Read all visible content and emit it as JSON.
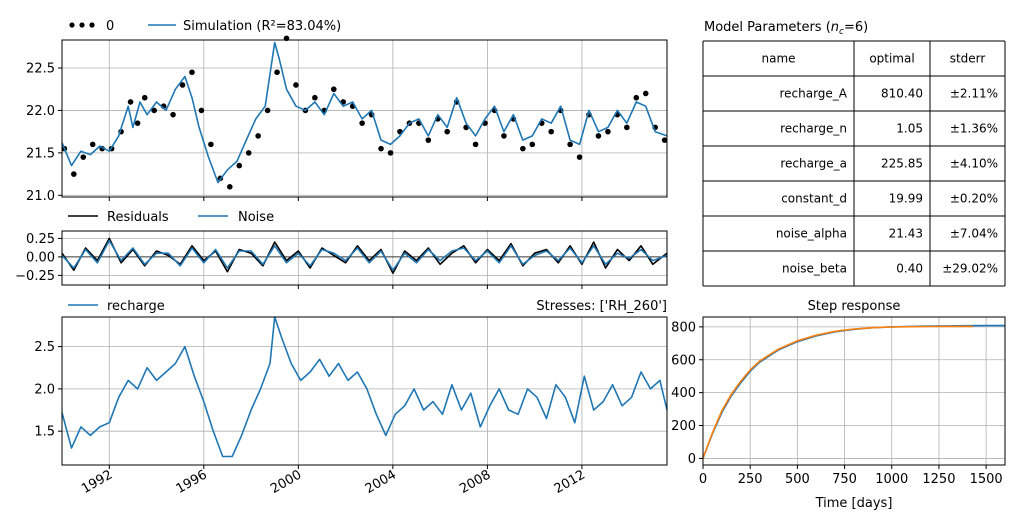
{
  "chart_data": [
    {
      "type": "scatter+line",
      "panel": "head",
      "legend": [
        {
          "label": "0",
          "style": "dots",
          "color": "#000000"
        },
        {
          "label": "Simulation (R²=83.04%)",
          "style": "line",
          "color": "#1f77b4"
        }
      ],
      "legend_placement": "top-left outside",
      "xlim": [
        1990.0,
        2015.6
      ],
      "ylim": [
        20.98,
        22.83
      ],
      "y_ticks": [
        "21.0",
        "21.5",
        "22.0",
        "22.5"
      ],
      "grid": true,
      "series": [
        {
          "name": "Simulation",
          "color": "#1f77b4",
          "x": [
            1990.0,
            1990.4,
            1990.8,
            1991.2,
            1991.6,
            1992.0,
            1992.4,
            1992.8,
            1993.0,
            1993.3,
            1993.6,
            1994.0,
            1994.4,
            1994.8,
            1995.2,
            1995.5,
            1995.8,
            1996.2,
            1996.6,
            1997.0,
            1997.4,
            1997.8,
            1998.2,
            1998.6,
            1999.0,
            1999.2,
            1999.5,
            1999.9,
            2000.3,
            2000.7,
            2001.1,
            2001.5,
            2001.9,
            2002.3,
            2002.7,
            2003.1,
            2003.5,
            2003.9,
            2004.3,
            2004.7,
            2005.1,
            2005.5,
            2005.9,
            2006.3,
            2006.7,
            2007.1,
            2007.5,
            2007.9,
            2008.3,
            2008.7,
            2009.1,
            2009.5,
            2009.9,
            2010.3,
            2010.7,
            2011.1,
            2011.5,
            2011.9,
            2012.3,
            2012.7,
            2013.1,
            2013.5,
            2013.9,
            2014.3,
            2014.7,
            2015.1,
            2015.6
          ],
          "y": [
            21.62,
            21.35,
            21.52,
            21.48,
            21.58,
            21.52,
            21.7,
            22.05,
            21.8,
            22.1,
            21.95,
            22.1,
            22.0,
            22.25,
            22.4,
            22.15,
            21.8,
            21.45,
            21.15,
            21.3,
            21.4,
            21.65,
            21.9,
            22.05,
            22.8,
            22.6,
            22.25,
            22.05,
            22.0,
            22.1,
            21.95,
            22.2,
            22.05,
            22.1,
            21.9,
            22.0,
            21.65,
            21.6,
            21.7,
            21.85,
            21.9,
            21.7,
            21.95,
            21.8,
            22.15,
            21.85,
            21.7,
            21.9,
            22.05,
            21.75,
            21.95,
            21.65,
            21.7,
            21.9,
            21.85,
            22.05,
            21.65,
            21.6,
            22.0,
            21.75,
            21.8,
            22.0,
            21.85,
            22.1,
            22.05,
            21.75,
            21.7
          ]
        },
        {
          "name": "0",
          "color": "#000000",
          "x": [
            1990.1,
            1990.5,
            1990.9,
            1991.3,
            1991.7,
            1992.1,
            1992.5,
            1992.9,
            1993.2,
            1993.5,
            1993.9,
            1994.3,
            1994.7,
            1995.1,
            1995.5,
            1995.9,
            1996.3,
            1996.7,
            1997.1,
            1997.5,
            1997.9,
            1998.3,
            1998.7,
            1999.1,
            1999.5,
            1999.9,
            2000.3,
            2000.7,
            2001.1,
            2001.5,
            2001.9,
            2002.3,
            2002.7,
            2003.1,
            2003.5,
            2003.9,
            2004.3,
            2004.7,
            2005.1,
            2005.5,
            2005.9,
            2006.3,
            2006.7,
            2007.1,
            2007.5,
            2007.9,
            2008.3,
            2008.7,
            2009.1,
            2009.5,
            2009.9,
            2010.3,
            2010.7,
            2011.1,
            2011.5,
            2011.9,
            2012.3,
            2012.7,
            2013.1,
            2013.5,
            2013.9,
            2014.3,
            2014.7,
            2015.1,
            2015.5
          ],
          "y": [
            21.55,
            21.25,
            21.45,
            21.6,
            21.55,
            21.55,
            21.75,
            22.1,
            21.85,
            22.15,
            22.0,
            22.05,
            21.95,
            22.3,
            22.45,
            22.0,
            21.6,
            21.2,
            21.1,
            21.35,
            21.5,
            21.7,
            22.0,
            22.45,
            22.85,
            22.3,
            22.0,
            22.15,
            22.0,
            22.25,
            22.1,
            22.05,
            21.85,
            21.95,
            21.55,
            21.5,
            21.75,
            21.85,
            21.85,
            21.65,
            21.9,
            21.75,
            22.1,
            21.8,
            21.6,
            21.85,
            22.0,
            21.7,
            21.9,
            21.55,
            21.6,
            21.85,
            21.75,
            22.0,
            21.6,
            21.45,
            21.95,
            21.7,
            21.75,
            21.95,
            21.8,
            22.15,
            22.2,
            21.8,
            21.65
          ]
        }
      ]
    },
    {
      "type": "line",
      "panel": "residuals",
      "legend": [
        {
          "label": "Residuals",
          "color": "#000000"
        },
        {
          "label": "Noise",
          "color": "#1f77b4"
        }
      ],
      "xlim": [
        1990.0,
        2015.6
      ],
      "ylim": [
        -0.38,
        0.35
      ],
      "y_ticks": [
        "−0.25",
        "0.00",
        "0.25"
      ],
      "grid": true,
      "series": [
        {
          "name": "Residuals",
          "color": "#000000",
          "x": [
            1990.0,
            1990.5,
            1991.0,
            1991.5,
            1992.0,
            1992.5,
            1993.0,
            1993.5,
            1994.0,
            1994.5,
            1995.0,
            1995.5,
            1996.0,
            1996.5,
            1997.0,
            1997.5,
            1998.0,
            1998.5,
            1999.0,
            1999.5,
            2000.0,
            2000.5,
            2001.0,
            2001.5,
            2002.0,
            2002.5,
            2003.0,
            2003.5,
            2004.0,
            2004.5,
            2005.0,
            2005.5,
            2006.0,
            2006.5,
            2007.0,
            2007.5,
            2008.0,
            2008.5,
            2009.0,
            2009.5,
            2010.0,
            2010.5,
            2011.0,
            2011.5,
            2012.0,
            2012.5,
            2013.0,
            2013.5,
            2014.0,
            2014.5,
            2015.0,
            2015.6
          ],
          "y": [
            0.05,
            -0.18,
            0.12,
            -0.05,
            0.25,
            -0.08,
            0.1,
            -0.12,
            0.08,
            0.02,
            -0.1,
            0.15,
            -0.05,
            0.08,
            -0.2,
            0.1,
            0.05,
            -0.12,
            0.2,
            -0.05,
            0.08,
            -0.15,
            0.12,
            0.02,
            -0.08,
            0.15,
            -0.05,
            0.1,
            -0.22,
            0.08,
            -0.05,
            0.12,
            -0.1,
            0.05,
            0.15,
            -0.08,
            0.1,
            -0.05,
            0.18,
            -0.12,
            0.05,
            0.1,
            -0.08,
            0.15,
            -0.1,
            0.2,
            -0.15,
            0.1,
            -0.05,
            0.15,
            -0.1,
            0.05
          ]
        },
        {
          "name": "Noise",
          "color": "#1f77b4",
          "x": [
            1990.0,
            1990.5,
            1991.0,
            1991.5,
            1992.0,
            1992.5,
            1993.0,
            1993.5,
            1994.0,
            1994.5,
            1995.0,
            1995.5,
            1996.0,
            1996.5,
            1997.0,
            1997.5,
            1998.0,
            1998.5,
            1999.0,
            1999.5,
            2000.0,
            2000.5,
            2001.0,
            2001.5,
            2002.0,
            2002.5,
            2003.0,
            2003.5,
            2004.0,
            2004.5,
            2005.0,
            2005.5,
            2006.0,
            2006.5,
            2007.0,
            2007.5,
            2008.0,
            2008.5,
            2009.0,
            2009.5,
            2010.0,
            2010.5,
            2011.0,
            2011.5,
            2012.0,
            2012.5,
            2013.0,
            2013.5,
            2014.0,
            2014.5,
            2015.0,
            2015.6
          ],
          "y": [
            0.02,
            -0.15,
            0.1,
            -0.08,
            0.22,
            -0.05,
            0.12,
            -0.1,
            0.05,
            0.05,
            -0.12,
            0.12,
            -0.08,
            0.1,
            -0.15,
            0.08,
            0.08,
            -0.1,
            0.15,
            -0.08,
            0.05,
            -0.12,
            0.1,
            0.05,
            -0.05,
            0.12,
            -0.08,
            0.08,
            -0.18,
            0.05,
            -0.08,
            0.1,
            -0.05,
            0.08,
            0.12,
            -0.05,
            0.08,
            -0.08,
            0.15,
            -0.1,
            0.02,
            0.08,
            -0.05,
            0.12,
            -0.08,
            0.15,
            -0.1,
            0.05,
            -0.02,
            0.1,
            -0.05,
            0.02
          ]
        }
      ]
    },
    {
      "type": "line",
      "panel": "contribution",
      "legend": [
        {
          "label": "recharge",
          "color": "#1f77b4"
        }
      ],
      "title_right": "Stresses: ['RH_260']",
      "xlim": [
        1990.0,
        2015.6
      ],
      "ylim": [
        1.1,
        2.85
      ],
      "y_ticks": [
        "1.5",
        "2.0",
        "2.5"
      ],
      "x_ticks": [
        "1992",
        "1996",
        "2000",
        "2004",
        "2008",
        "2012"
      ],
      "x_tick_values": [
        1992,
        1996,
        2000,
        2004,
        2008,
        2012
      ],
      "grid": true,
      "series": [
        {
          "name": "recharge",
          "color": "#1f77b4",
          "x": [
            1990.0,
            1990.4,
            1990.8,
            1991.2,
            1991.6,
            1992.0,
            1992.4,
            1992.8,
            1993.2,
            1993.6,
            1994.0,
            1994.4,
            1994.8,
            1995.2,
            1995.6,
            1996.0,
            1996.4,
            1996.8,
            1997.2,
            1997.6,
            1998.0,
            1998.4,
            1998.8,
            1999.0,
            1999.3,
            1999.7,
            2000.1,
            2000.5,
            2000.9,
            2001.3,
            2001.7,
            2002.1,
            2002.5,
            2002.9,
            2003.3,
            2003.7,
            2004.1,
            2004.5,
            2004.9,
            2005.3,
            2005.7,
            2006.1,
            2006.5,
            2006.9,
            2007.3,
            2007.7,
            2008.1,
            2008.5,
            2008.9,
            2009.3,
            2009.7,
            2010.1,
            2010.5,
            2010.9,
            2011.3,
            2011.7,
            2012.1,
            2012.5,
            2012.9,
            2013.3,
            2013.7,
            2014.1,
            2014.5,
            2014.9,
            2015.3,
            2015.6
          ],
          "y": [
            1.72,
            1.3,
            1.55,
            1.45,
            1.55,
            1.6,
            1.9,
            2.1,
            2.0,
            2.25,
            2.1,
            2.2,
            2.3,
            2.5,
            2.15,
            1.85,
            1.5,
            1.2,
            1.2,
            1.45,
            1.75,
            2.0,
            2.3,
            2.85,
            2.6,
            2.3,
            2.1,
            2.2,
            2.35,
            2.15,
            2.3,
            2.1,
            2.2,
            2.0,
            1.7,
            1.45,
            1.7,
            1.8,
            2.0,
            1.75,
            1.85,
            1.7,
            2.05,
            1.75,
            1.95,
            1.55,
            1.8,
            2.0,
            1.75,
            1.7,
            2.0,
            1.9,
            1.65,
            2.05,
            1.9,
            1.6,
            2.15,
            1.75,
            1.85,
            2.05,
            1.8,
            1.9,
            2.2,
            2.0,
            2.1,
            1.75
          ]
        }
      ]
    },
    {
      "type": "table",
      "panel": "parameters",
      "title": "Model Parameters (n_c=6)",
      "title_text": "Model Parameters (",
      "title_sym": "n",
      "title_sub": "c",
      "title_tail": "=6)",
      "columns": [
        "name",
        "optimal",
        "stderr"
      ],
      "rows": [
        [
          "recharge_A",
          "810.40",
          "±2.11%"
        ],
        [
          "recharge_n",
          "1.05",
          "±1.36%"
        ],
        [
          "recharge_a",
          "225.85",
          "±4.10%"
        ],
        [
          "constant_d",
          "19.99",
          "±0.20%"
        ],
        [
          "noise_alpha",
          "21.43",
          "±7.04%"
        ],
        [
          "noise_beta",
          "0.40",
          "±29.02%"
        ]
      ]
    },
    {
      "type": "line",
      "panel": "step-response",
      "title": "Step response",
      "xlabel": "Time [days]",
      "xlim": [
        0,
        1600
      ],
      "ylim": [
        -40,
        860
      ],
      "x_ticks": [
        "0",
        "250",
        "500",
        "750",
        "1000",
        "1250",
        "1500"
      ],
      "x_tick_values": [
        0,
        250,
        500,
        750,
        1000,
        1250,
        1500
      ],
      "y_ticks": [
        "0",
        "200",
        "400",
        "600",
        "800"
      ],
      "y_tick_values": [
        0,
        200,
        400,
        600,
        800
      ],
      "grid": true,
      "series": [
        {
          "name": "blue",
          "color": "#1f77b4",
          "x": [
            0,
            50,
            100,
            150,
            200,
            250,
            300,
            400,
            500,
            600,
            700,
            800,
            900,
            1000,
            1100,
            1200,
            1300,
            1400,
            1500,
            1600
          ],
          "y": [
            0,
            150,
            280,
            380,
            460,
            530,
            585,
            660,
            710,
            745,
            770,
            785,
            795,
            800,
            803,
            805,
            806,
            807,
            808,
            808
          ]
        },
        {
          "name": "orange",
          "color": "#ff7f0e",
          "x": [
            0,
            50,
            100,
            150,
            200,
            250,
            300,
            400,
            500,
            600,
            700,
            800,
            900,
            1000,
            1100,
            1200,
            1300,
            1430
          ],
          "y": [
            0,
            155,
            290,
            390,
            470,
            538,
            592,
            665,
            715,
            750,
            773,
            787,
            795,
            799,
            801,
            802,
            803,
            803
          ]
        }
      ]
    }
  ]
}
